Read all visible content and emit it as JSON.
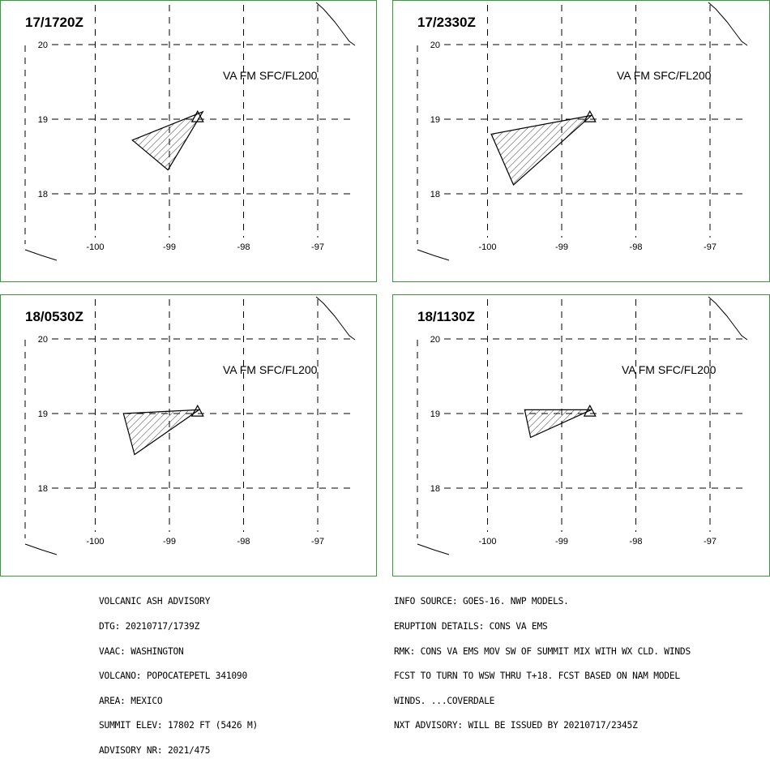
{
  "panels": [
    {
      "time": "17/1720Z",
      "label": "VA FM SFC/FL200",
      "ash_area": [
        [
          -98.55,
          19.1
        ],
        [
          -99.5,
          18.72
        ],
        [
          -99.02,
          18.32
        ]
      ]
    },
    {
      "time": "17/2330Z",
      "label": "VA FM SFC/FL200",
      "ash_area": [
        [
          -98.6,
          19.05
        ],
        [
          -99.95,
          18.8
        ],
        [
          -99.65,
          18.12
        ]
      ]
    },
    {
      "time": "18/0530Z",
      "label": "VA FM SFC/FL200",
      "ash_area": [
        [
          -98.6,
          19.05
        ],
        [
          -99.62,
          19.0
        ],
        [
          -99.47,
          18.45
        ]
      ]
    },
    {
      "time": "18/1130Z",
      "label": "VA FM SFC/FL200",
      "ash_area": [
        [
          -98.6,
          19.05
        ],
        [
          -99.5,
          19.05
        ],
        [
          -99.42,
          18.68
        ]
      ]
    }
  ],
  "lat_labels": [
    "20",
    "19",
    "18"
  ],
  "lon_labels": [
    "-100",
    "-99",
    "-98",
    "-97"
  ],
  "volcano_location": {
    "lon": -98.62,
    "lat": 19.02
  },
  "advisory_left": [
    "VOLCANIC ASH ADVISORY",
    "DTG: 20210717/1739Z",
    "VAAC: WASHINGTON",
    "VOLCANO: POPOCATEPETL 341090",
    "AREA: MEXICO",
    "SUMMIT ELEV: 17802 FT (5426 M)",
    "ADVISORY NR: 2021/475"
  ],
  "advisory_right": [
    "INFO SOURCE: GOES-16. NWP MODELS.",
    "ERUPTION DETAILS: CONS VA EMS",
    "RMK: CONS VA EMS MOV SW OF SUMMIT MIX WITH WX CLD. WINDS",
    "FCST TO TURN TO WSW THRU T+18. FCST BASED ON NAM MODEL",
    "WINDS. ...COVERDALE",
    "NXT ADVISORY: WILL BE ISSUED BY 20210717/2345Z"
  ],
  "colors": {
    "border": "#3a9a3a",
    "lines": "#000000"
  }
}
